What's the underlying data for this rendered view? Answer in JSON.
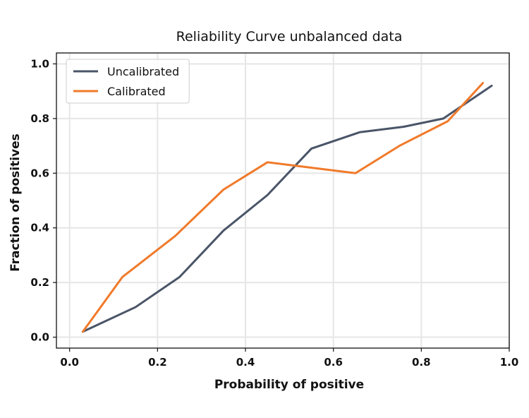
{
  "chart_data": {
    "type": "line",
    "title": "Reliability Curve unbalanced data",
    "xlabel": "Probability of positive",
    "ylabel": "Fraction of positives",
    "xlim": [
      -0.03,
      1.0
    ],
    "ylim": [
      -0.04,
      1.04
    ],
    "xticks": [
      "0.0",
      "0.2",
      "0.4",
      "0.6",
      "0.8",
      "1.0"
    ],
    "yticks": [
      "0.0",
      "0.2",
      "0.4",
      "0.6",
      "0.8",
      "1.0"
    ],
    "grid": true,
    "legend_position": "top-left",
    "series": [
      {
        "name": "Uncalibrated",
        "color": "#4a5568",
        "x": [
          0.03,
          0.15,
          0.25,
          0.35,
          0.45,
          0.55,
          0.66,
          0.76,
          0.85,
          0.96
        ],
        "y": [
          0.02,
          0.11,
          0.22,
          0.39,
          0.52,
          0.69,
          0.75,
          0.77,
          0.8,
          0.92
        ]
      },
      {
        "name": "Calibrated",
        "color": "#f07a2a",
        "x": [
          0.03,
          0.12,
          0.24,
          0.35,
          0.45,
          0.65,
          0.75,
          0.86,
          0.94
        ],
        "y": [
          0.02,
          0.22,
          0.37,
          0.54,
          0.64,
          0.6,
          0.7,
          0.79,
          0.93
        ]
      }
    ]
  }
}
